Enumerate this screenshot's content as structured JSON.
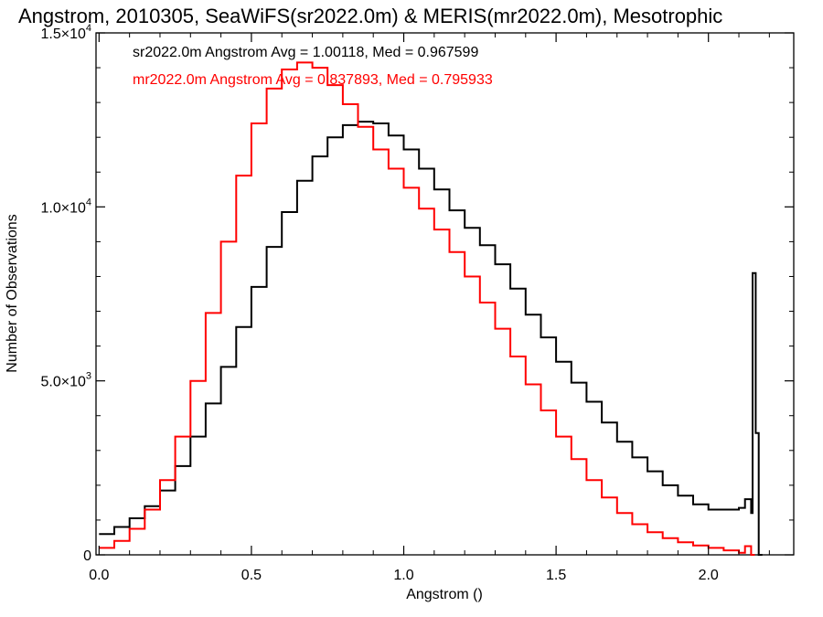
{
  "chart_data": {
    "type": "line",
    "title": "Angstrom, 2010305, SeaWiFS(sr2022.0m) & MERIS(mr2022.0m), Mesotrophic",
    "xlabel": "Angstrom ()",
    "ylabel": "Number of Observations",
    "xlim": [
      -0.01,
      2.28
    ],
    "ylim": [
      0,
      15000
    ],
    "grid": false,
    "x_ticks": [
      {
        "value": 0.0,
        "label": "0.0"
      },
      {
        "value": 0.5,
        "label": "0.5"
      },
      {
        "value": 1.0,
        "label": "1.0"
      },
      {
        "value": 1.5,
        "label": "1.5"
      },
      {
        "value": 2.0,
        "label": "2.0"
      }
    ],
    "y_ticks": [
      {
        "value": 0,
        "mantissa": "0",
        "exponent": ""
      },
      {
        "value": 5000,
        "mantissa": "5.0×10",
        "exponent": "3"
      },
      {
        "value": 10000,
        "mantissa": "1.0×10",
        "exponent": "4"
      },
      {
        "value": 15000,
        "mantissa": "1.5×10",
        "exponent": "4"
      }
    ],
    "annotations": [
      {
        "text": "sr2022.0m Angstrom Avg = 1.00118, Med = 0.967599",
        "color": "#000000"
      },
      {
        "text": "mr2022.0m Angstrom Avg = 0.837893, Med = 0.795933",
        "color": "#ff0000"
      }
    ],
    "series": [
      {
        "color": "#000000",
        "step": true,
        "points": [
          [
            0.0,
            600
          ],
          [
            0.05,
            800
          ],
          [
            0.1,
            1050
          ],
          [
            0.15,
            1400
          ],
          [
            0.2,
            1850
          ],
          [
            0.25,
            2550
          ],
          [
            0.3,
            3400
          ],
          [
            0.35,
            4350
          ],
          [
            0.4,
            5400
          ],
          [
            0.45,
            6550
          ],
          [
            0.5,
            7700
          ],
          [
            0.55,
            8850
          ],
          [
            0.6,
            9850
          ],
          [
            0.65,
            10750
          ],
          [
            0.7,
            11450
          ],
          [
            0.75,
            12000
          ],
          [
            0.8,
            12350
          ],
          [
            0.85,
            12450
          ],
          [
            0.9,
            12400
          ],
          [
            0.95,
            12050
          ],
          [
            1.0,
            11650
          ],
          [
            1.05,
            11100
          ],
          [
            1.1,
            10500
          ],
          [
            1.15,
            9900
          ],
          [
            1.2,
            9400
          ],
          [
            1.25,
            8900
          ],
          [
            1.3,
            8350
          ],
          [
            1.35,
            7650
          ],
          [
            1.4,
            6900
          ],
          [
            1.45,
            6250
          ],
          [
            1.5,
            5550
          ],
          [
            1.55,
            4950
          ],
          [
            1.6,
            4400
          ],
          [
            1.65,
            3800
          ],
          [
            1.7,
            3250
          ],
          [
            1.75,
            2800
          ],
          [
            1.8,
            2400
          ],
          [
            1.85,
            2000
          ],
          [
            1.9,
            1700
          ],
          [
            1.95,
            1450
          ],
          [
            2.0,
            1300
          ],
          [
            2.05,
            1300
          ],
          [
            2.1,
            1350
          ],
          [
            2.12,
            1600
          ],
          [
            2.14,
            1200
          ],
          [
            2.145,
            8100
          ],
          [
            2.155,
            3500
          ],
          [
            2.165,
            0
          ]
        ]
      },
      {
        "color": "#ff0000",
        "step": true,
        "points": [
          [
            0.0,
            200
          ],
          [
            0.05,
            400
          ],
          [
            0.1,
            750
          ],
          [
            0.15,
            1300
          ],
          [
            0.2,
            2150
          ],
          [
            0.25,
            3400
          ],
          [
            0.3,
            5000
          ],
          [
            0.35,
            6950
          ],
          [
            0.4,
            9000
          ],
          [
            0.45,
            10900
          ],
          [
            0.5,
            12400
          ],
          [
            0.55,
            13400
          ],
          [
            0.6,
            13950
          ],
          [
            0.65,
            14150
          ],
          [
            0.7,
            14000
          ],
          [
            0.75,
            13500
          ],
          [
            0.8,
            12950
          ],
          [
            0.85,
            12300
          ],
          [
            0.9,
            11650
          ],
          [
            0.95,
            11100
          ],
          [
            1.0,
            10550
          ],
          [
            1.05,
            9950
          ],
          [
            1.1,
            9350
          ],
          [
            1.15,
            8700
          ],
          [
            1.2,
            8000
          ],
          [
            1.25,
            7250
          ],
          [
            1.3,
            6500
          ],
          [
            1.35,
            5700
          ],
          [
            1.4,
            4900
          ],
          [
            1.45,
            4150
          ],
          [
            1.5,
            3400
          ],
          [
            1.55,
            2750
          ],
          [
            1.6,
            2150
          ],
          [
            1.65,
            1650
          ],
          [
            1.7,
            1200
          ],
          [
            1.75,
            880
          ],
          [
            1.8,
            650
          ],
          [
            1.85,
            480
          ],
          [
            1.9,
            360
          ],
          [
            1.95,
            270
          ],
          [
            2.0,
            200
          ],
          [
            2.05,
            130
          ],
          [
            2.1,
            60
          ],
          [
            2.12,
            250
          ],
          [
            2.14,
            0
          ]
        ]
      }
    ]
  }
}
